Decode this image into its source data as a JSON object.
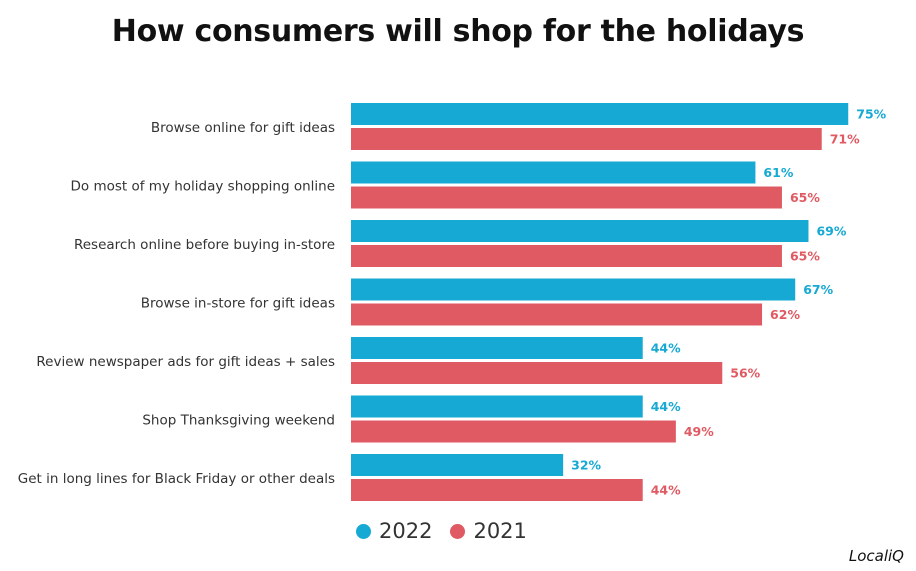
{
  "chart_data": {
    "type": "bar",
    "orientation": "horizontal",
    "title": "How consumers will shop for the holidays",
    "categories": [
      "Browse online for gift ideas",
      "Do most of my holiday shopping online",
      "Research online before buying in-store",
      "Browse in-store for gift ideas",
      "Review newspaper ads for gift ideas + sales",
      "Shop Thanksgiving weekend",
      "Get in long lines for Black Friday or other deals"
    ],
    "series": [
      {
        "name": "2022",
        "color": "#16a9d3",
        "values": [
          75,
          61,
          69,
          67,
          44,
          44,
          32
        ]
      },
      {
        "name": "2021",
        "color": "#e05a63",
        "values": [
          71,
          65,
          65,
          62,
          56,
          49,
          44
        ]
      }
    ],
    "value_suffix": "%",
    "xlim": [
      0,
      100
    ],
    "grid": false,
    "legend_position": "bottom"
  },
  "source": "LocaliQ"
}
